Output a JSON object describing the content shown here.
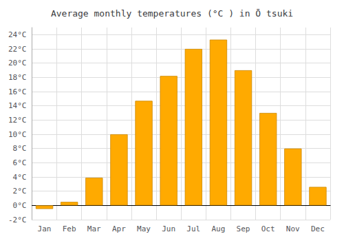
{
  "chart_data": {
    "type": "bar",
    "title": "Average monthly temperatures (°C ) in Ō tsuki",
    "categories": [
      "Jan",
      "Feb",
      "Mar",
      "Apr",
      "May",
      "Jun",
      "Jul",
      "Aug",
      "Sep",
      "Oct",
      "Nov",
      "Dec"
    ],
    "values": [
      -0.5,
      0.5,
      3.9,
      10.0,
      14.7,
      18.2,
      22.0,
      23.3,
      19.0,
      13.0,
      8.0,
      2.6
    ],
    "color": "#FFAA00",
    "ylim": [
      -2,
      25
    ],
    "yticks": [
      {
        "value": -2,
        "label": "-2°C"
      },
      {
        "value": 0,
        "label": "0°C"
      },
      {
        "value": 2,
        "label": "2°C"
      },
      {
        "value": 4,
        "label": "4°C"
      },
      {
        "value": 6,
        "label": "6°C"
      },
      {
        "value": 8,
        "label": "8°C"
      },
      {
        "value": 10,
        "label": "10°C"
      },
      {
        "value": 12,
        "label": "12°C"
      },
      {
        "value": 14,
        "label": "14°C"
      },
      {
        "value": 16,
        "label": "16°C"
      },
      {
        "value": 18,
        "label": "18°C"
      },
      {
        "value": 20,
        "label": "20°C"
      },
      {
        "value": 22,
        "label": "22°C"
      },
      {
        "value": 24,
        "label": "24°C"
      }
    ],
    "grid": true
  }
}
